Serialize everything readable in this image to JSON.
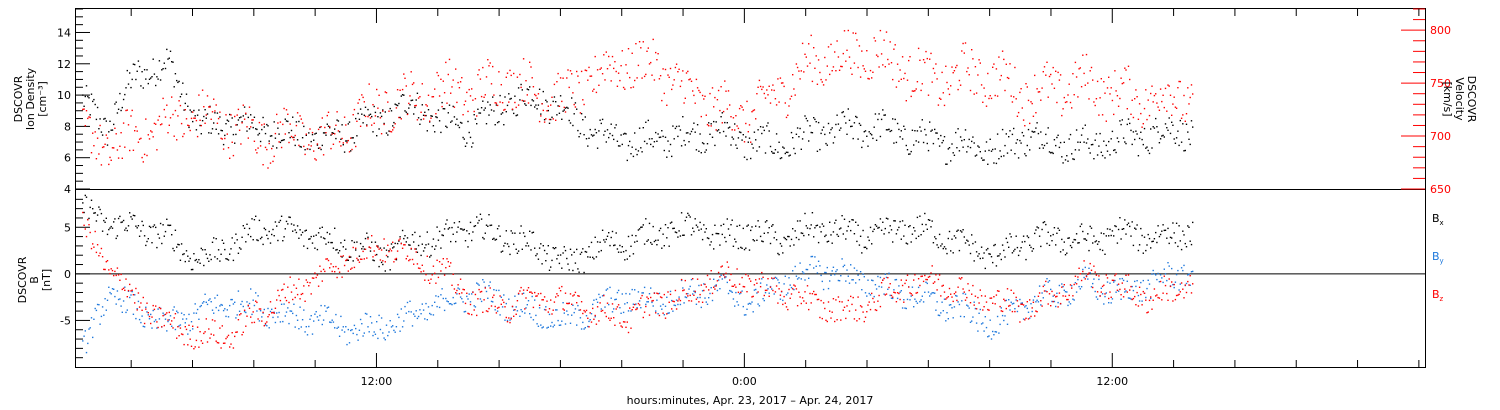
{
  "chart_data": [
    {
      "type": "scatter",
      "panel": "top",
      "ylabel_left": [
        "DSCOVR",
        "Ion Density",
        "[cm⁻³]"
      ],
      "ylabel_right": [
        "DSCOVR",
        "Velocity",
        "[km/s]"
      ],
      "left_axis": {
        "range": [
          4,
          15.5
        ],
        "ticks": [
          "4",
          "6",
          "8",
          "10",
          "12",
          "14"
        ],
        "tick_values": [
          4,
          6,
          8,
          10,
          12,
          14
        ],
        "color": "#000000"
      },
      "right_axis": {
        "range": [
          650,
          820
        ],
        "ticks": [
          "650",
          "700",
          "750",
          "800"
        ],
        "tick_values": [
          650,
          700,
          750,
          800
        ],
        "color": "#ff0000"
      },
      "series": [
        {
          "color": "#000000",
          "axis": "left",
          "x": [
            0.2,
            1.0,
            2.0,
            3.0,
            4.0,
            5.0,
            6.0,
            7.0,
            8.0,
            9.0,
            10.0,
            11.0,
            12.0,
            13.0,
            14.0,
            15.0,
            16.0,
            17.0,
            18.0,
            19.0,
            20.0,
            21.0,
            22.0,
            23.0,
            24.0,
            25.0,
            26.0,
            27.0,
            28.0,
            29.0,
            30.0,
            31.0,
            32.0,
            33.0,
            34.0,
            35.0,
            36.0,
            36.4
          ],
          "y": [
            9.5,
            8.0,
            11.5,
            12.0,
            8.0,
            8.2,
            8.0,
            7.5,
            7.3,
            7.8,
            8.5,
            9.5,
            8.2,
            8.0,
            9.5,
            10.0,
            9.0,
            7.5,
            7.0,
            7.2,
            7.5,
            7.8,
            7.0,
            6.8,
            7.5,
            7.8,
            8.0,
            7.5,
            7.0,
            7.0,
            6.5,
            7.5,
            7.0,
            6.8,
            7.2,
            7.5,
            8.0,
            7.5
          ]
        },
        {
          "color": "#ff0000",
          "axis": "right",
          "x": [
            0.2,
            1.0,
            2.0,
            3.0,
            4.0,
            5.0,
            6.0,
            7.0,
            8.0,
            9.0,
            10.0,
            11.0,
            12.0,
            13.0,
            14.0,
            15.0,
            16.0,
            17.0,
            18.0,
            19.0,
            20.0,
            21.0,
            22.0,
            23.0,
            24.0,
            25.0,
            26.0,
            27.0,
            28.0,
            29.0,
            30.0,
            31.0,
            32.0,
            33.0,
            34.0,
            35.0,
            36.0,
            36.4
          ],
          "y": [
            700,
            690,
            700,
            715,
            720,
            710,
            700,
            705,
            695,
            710,
            730,
            735,
            745,
            740,
            755,
            740,
            735,
            760,
            770,
            765,
            740,
            725,
            720,
            745,
            770,
            775,
            780,
            765,
            750,
            760,
            755,
            740,
            745,
            750,
            740,
            735,
            740,
            730
          ]
        }
      ]
    },
    {
      "type": "scatter",
      "panel": "bottom",
      "ylabel_left": [
        "DSCOVR",
        "B",
        "[nT]"
      ],
      "left_axis": {
        "range": [
          -10,
          9
        ],
        "ticks": [
          "-5",
          "0",
          "5"
        ],
        "tick_values": [
          -5,
          0,
          5
        ],
        "color": "#000000"
      },
      "zero_line": true,
      "legend": [
        {
          "label": "B",
          "sub": "x",
          "color": "#000000"
        },
        {
          "label": "B",
          "sub": "y",
          "color": "#1e78dc"
        },
        {
          "label": "B",
          "sub": "z",
          "color": "#ff0000"
        }
      ],
      "legend_position": "right",
      "series": [
        {
          "name": "Bx",
          "color": "#000000",
          "x": [
            0.2,
            1.0,
            2.0,
            3.0,
            4.0,
            5.0,
            6.0,
            7.0,
            8.0,
            9.0,
            10.0,
            11.0,
            12.0,
            13.0,
            14.0,
            15.0,
            16.0,
            17.0,
            18.0,
            19.0,
            20.0,
            21.0,
            22.0,
            23.0,
            24.0,
            25.0,
            26.0,
            27.0,
            28.0,
            29.0,
            30.0,
            31.0,
            32.0,
            33.0,
            34.0,
            35.0,
            36.0,
            36.4
          ],
          "y": [
            7.0,
            5.5,
            5.0,
            4.0,
            1.5,
            3.0,
            5.0,
            4.5,
            4.0,
            3.0,
            2.0,
            3.5,
            4.0,
            5.0,
            4.0,
            3.0,
            1.0,
            3.0,
            3.5,
            4.5,
            5.0,
            4.0,
            4.5,
            3.5,
            5.0,
            4.5,
            4.0,
            5.0,
            4.5,
            3.0,
            2.0,
            3.5,
            4.0,
            3.5,
            4.5,
            4.0,
            4.5,
            4.5
          ]
        },
        {
          "name": "By",
          "color": "#1e78dc",
          "x": [
            0.2,
            1.0,
            2.0,
            3.0,
            4.0,
            5.0,
            6.0,
            7.0,
            8.0,
            9.0,
            10.0,
            11.0,
            12.0,
            13.0,
            14.0,
            15.0,
            16.0,
            17.0,
            18.0,
            19.0,
            20.0,
            21.0,
            22.0,
            23.0,
            24.0,
            25.0,
            26.0,
            27.0,
            28.0,
            29.0,
            30.0,
            31.0,
            32.0,
            33.0,
            34.0,
            35.0,
            36.0,
            36.4
          ],
          "y": [
            -8.5,
            -2.0,
            -4.0,
            -5.5,
            -4.0,
            -3.0,
            -3.5,
            -4.5,
            -5.0,
            -6.0,
            -5.5,
            -4.5,
            -3.0,
            -2.0,
            -3.0,
            -4.0,
            -5.0,
            -3.5,
            -2.5,
            -3.0,
            -2.0,
            -1.5,
            -3.0,
            -1.0,
            0.5,
            0.0,
            -1.0,
            -2.0,
            -3.0,
            -4.0,
            -5.5,
            -3.0,
            -2.0,
            -1.0,
            -2.0,
            -1.0,
            0.0,
            0.5
          ]
        },
        {
          "name": "Bz",
          "color": "#ff0000",
          "x": [
            0.2,
            1.0,
            2.0,
            3.0,
            4.0,
            5.0,
            6.0,
            7.0,
            8.0,
            9.0,
            10.0,
            11.0,
            12.0,
            13.0,
            14.0,
            15.0,
            16.0,
            17.0,
            18.0,
            19.0,
            20.0,
            21.0,
            22.0,
            23.0,
            24.0,
            25.0,
            26.0,
            27.0,
            28.0,
            29.0,
            30.0,
            31.0,
            32.0,
            33.0,
            34.0,
            35.0,
            36.0,
            36.4
          ],
          "y": [
            5.0,
            1.0,
            -3.0,
            -5.5,
            -6.5,
            -6.5,
            -4.0,
            -2.0,
            0.0,
            2.0,
            3.0,
            2.0,
            0.0,
            -3.0,
            -3.5,
            -2.5,
            -3.0,
            -4.0,
            -4.5,
            -3.0,
            -2.0,
            0.0,
            -1.0,
            -2.0,
            -3.0,
            -4.0,
            -3.0,
            -1.0,
            -0.5,
            -2.0,
            -3.0,
            -3.5,
            -2.0,
            0.0,
            -1.5,
            -2.5,
            -1.5,
            -1.0
          ]
        }
      ]
    }
  ],
  "x_axis": {
    "title": "hours:minutes, Apr. 23, 2017 – Apr. 24, 2017",
    "range_hours": [
      2.2,
      46.2
    ],
    "major_ticks": [
      {
        "hour": 12,
        "label": "12:00"
      },
      {
        "hour": 24,
        "label": "0:00"
      },
      {
        "hour": 36,
        "label": "12:00"
      }
    ]
  }
}
